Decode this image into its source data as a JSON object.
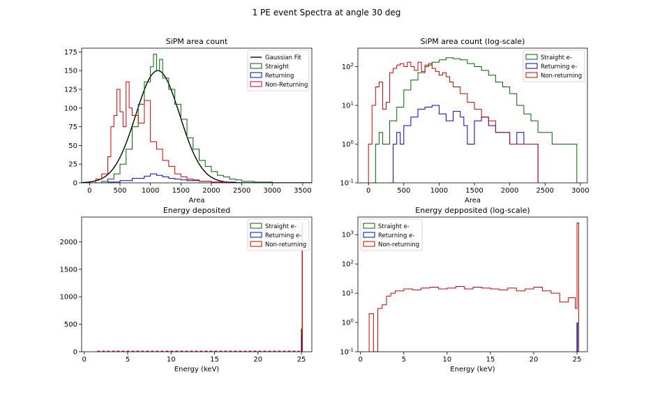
{
  "figure": {
    "suptitle": "1 PE event Spectra at angle 30 deg"
  },
  "colors": {
    "straight": "#006400",
    "returning": "#0000cd",
    "nonreturning": "#cc0000",
    "gaussian": "#000000"
  },
  "chart_data": [
    {
      "type": "line",
      "title": "SiPM area count",
      "xlabel": "Area",
      "ylabel": "",
      "xlim": [
        -130,
        3650
      ],
      "ylim": [
        0,
        180
      ],
      "xticks": [
        0,
        500,
        1000,
        1500,
        2000,
        2500,
        3000,
        3500
      ],
      "yticks": [
        0,
        25,
        50,
        75,
        100,
        125,
        150,
        175
      ],
      "yscale": "linear",
      "legend_position": "top-right",
      "series": [
        {
          "name": "Gaussian Fit",
          "style": "line",
          "fit": {
            "amplitude": 150,
            "mean": 1120,
            "sigma": 360
          }
        },
        {
          "name": "Straight",
          "style": "step",
          "x": [
            0,
            200,
            300,
            400,
            500,
            600,
            700,
            800,
            900,
            1000,
            1050,
            1100,
            1150,
            1200,
            1300,
            1400,
            1500,
            1600,
            1700,
            1800,
            1900,
            2000,
            2100,
            2200,
            2300,
            2400,
            2500,
            2600,
            2700,
            2800,
            2900,
            3000
          ],
          "y": [
            0,
            2,
            5,
            12,
            25,
            45,
            75,
            105,
            135,
            155,
            172,
            150,
            165,
            140,
            125,
            105,
            85,
            60,
            45,
            30,
            22,
            15,
            10,
            8,
            5,
            4,
            2,
            2,
            1,
            1,
            1,
            0
          ]
        },
        {
          "name": "Returning",
          "style": "step",
          "x": [
            0,
            300,
            500,
            700,
            900,
            1000,
            1100,
            1200,
            1300,
            1400,
            1500,
            1600,
            1800,
            2000,
            2200,
            2400
          ],
          "y": [
            0,
            1,
            3,
            6,
            9,
            12,
            10,
            8,
            6,
            5,
            4,
            3,
            2,
            1,
            1,
            0
          ]
        },
        {
          "name": "Non-Returning",
          "style": "step",
          "x": [
            0,
            100,
            200,
            300,
            350,
            400,
            450,
            500,
            550,
            600,
            650,
            700,
            800,
            900,
            1000,
            1100,
            1200,
            1300,
            1400,
            1500,
            1600,
            1700,
            1800,
            2000,
            2200,
            2300
          ],
          "y": [
            0,
            5,
            12,
            35,
            75,
            90,
            125,
            95,
            75,
            135,
            100,
            90,
            80,
            110,
            55,
            45,
            30,
            22,
            12,
            8,
            5,
            4,
            2,
            1,
            1,
            0
          ]
        }
      ]
    },
    {
      "type": "line",
      "title": "SiPM area count (log-scale)",
      "xlabel": "Area",
      "ylabel": "",
      "xlim": [
        -150,
        3100
      ],
      "ylim": [
        0.1,
        300
      ],
      "xticks": [
        0,
        500,
        1000,
        1500,
        2000,
        2500,
        3000
      ],
      "yticks": [
        0.1,
        1,
        10,
        100
      ],
      "ytick_labels": [
        "10^-1",
        "10^0",
        "10^1",
        "10^2"
      ],
      "yscale": "log",
      "legend_position": "top-right",
      "series": [
        {
          "name": "Straight e-",
          "style": "step",
          "x": [
            50,
            100,
            150,
            200,
            300,
            400,
            500,
            600,
            700,
            800,
            900,
            1000,
            1100,
            1200,
            1300,
            1400,
            1500,
            1600,
            1700,
            1800,
            1900,
            2000,
            2100,
            2200,
            2300,
            2400,
            2500,
            2600,
            2700,
            2800,
            2900,
            2950
          ],
          "y": [
            0.1,
            1,
            2,
            1,
            4,
            9,
            25,
            45,
            70,
            110,
            130,
            150,
            170,
            160,
            150,
            120,
            100,
            80,
            60,
            40,
            30,
            20,
            10,
            6,
            4,
            2,
            2,
            1,
            1,
            1,
            1,
            0.1
          ]
        },
        {
          "name": "Returning e-",
          "style": "step",
          "x": [
            300,
            350,
            400,
            450,
            500,
            600,
            700,
            800,
            900,
            1000,
            1100,
            1200,
            1300,
            1350,
            1400,
            1500,
            1600,
            1700,
            1800,
            1900,
            2000,
            2100,
            2200,
            2300,
            2350,
            2400
          ],
          "y": [
            0.1,
            1,
            2,
            1,
            3,
            5,
            8,
            9,
            10,
            6,
            4,
            7,
            5,
            3,
            1,
            4,
            5,
            3,
            2,
            2,
            1,
            2,
            1,
            1,
            1,
            0.1
          ]
        },
        {
          "name": "Non-returning",
          "style": "step",
          "x": [
            0,
            50,
            100,
            150,
            200,
            250,
            300,
            350,
            400,
            450,
            500,
            550,
            600,
            650,
            700,
            750,
            800,
            850,
            900,
            950,
            1000,
            1050,
            1100,
            1150,
            1200,
            1300,
            1400,
            1500,
            1600,
            1700,
            1800,
            1900,
            2000,
            2100,
            2200,
            2300,
            2400
          ],
          "y": [
            1,
            10,
            30,
            40,
            8,
            12,
            70,
            90,
            110,
            120,
            100,
            130,
            100,
            80,
            130,
            75,
            100,
            120,
            90,
            75,
            60,
            70,
            55,
            40,
            30,
            20,
            12,
            8,
            5,
            4,
            2,
            2,
            1,
            1,
            1,
            1,
            0.1
          ]
        }
      ]
    },
    {
      "type": "bar",
      "title": "Energy deposited",
      "xlabel": "Energy (keV)",
      "ylabel": "",
      "xlim": [
        -0.3,
        26.2
      ],
      "ylim": [
        0,
        2450
      ],
      "xticks": [
        0,
        5,
        10,
        15,
        20,
        25
      ],
      "yticks": [
        0,
        500,
        1000,
        1500,
        2000
      ],
      "yscale": "linear",
      "legend_position": "top-right",
      "series": [
        {
          "name": "Straight e-",
          "spikes": [
            {
              "x": 25,
              "y": 420
            }
          ]
        },
        {
          "name": "Returning e-",
          "spikes": [
            {
              "x": 25,
              "y": 300
            }
          ]
        },
        {
          "name": "Non-returning",
          "baseline": {
            "from": 1.5,
            "to": 24.8,
            "y": 12
          },
          "spikes": [
            {
              "x": 25,
              "y": 2350
            }
          ]
        }
      ]
    },
    {
      "type": "line",
      "title": "Energy depposited (log-scale)",
      "xlabel": "Energy (keV)",
      "ylabel": "",
      "xlim": [
        -0.3,
        26.2
      ],
      "ylim": [
        0.1,
        4000
      ],
      "xticks": [
        0,
        5,
        10,
        15,
        20,
        25
      ],
      "yticks": [
        0.1,
        1,
        10,
        100,
        1000
      ],
      "ytick_labels": [
        "10^-1",
        "10^0",
        "10^1",
        "10^2",
        "10^3"
      ],
      "yscale": "log",
      "legend_position": "top-left",
      "series": [
        {
          "name": "Straight e-",
          "spikes": [
            {
              "x": 25,
              "y": 1
            }
          ]
        },
        {
          "name": "Returning e-",
          "spikes": [
            {
              "x": 25,
              "y": 1
            }
          ]
        },
        {
          "name": "Non-returning",
          "style": "step",
          "x": [
            1,
            1.5,
            2,
            2.5,
            3,
            3.5,
            4,
            5,
            6,
            7,
            8,
            9,
            10,
            11,
            12,
            13,
            14,
            15,
            16,
            17,
            18,
            19,
            20,
            21,
            22,
            23,
            24,
            24.8,
            25,
            25.2
          ],
          "y": [
            2,
            0.1,
            3,
            4,
            8,
            10,
            12,
            14,
            13,
            15,
            16,
            14,
            15,
            17,
            14,
            16,
            15,
            14,
            13,
            15,
            12,
            14,
            16,
            12,
            10,
            5,
            7,
            3,
            2500,
            0.1
          ]
        }
      ]
    }
  ]
}
